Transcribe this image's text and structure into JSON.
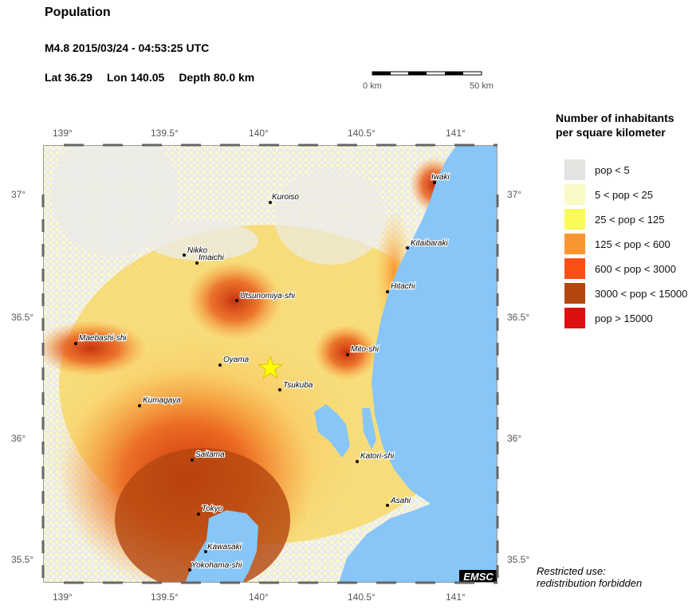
{
  "header": {
    "title": "Population",
    "event": "M4.8  2015/03/24 - 04:53:25 UTC",
    "lat": "Lat 36.29",
    "lon": "Lon 140.05",
    "depth": "Depth  80.0 km"
  },
  "scale_bar": {
    "start": "0 km",
    "end": "50 km"
  },
  "axes": {
    "lon_ticks": [
      "139°",
      "139.5°",
      "140°",
      "140.5°",
      "141°"
    ],
    "lat_ticks": [
      "37°",
      "36.5°",
      "36°",
      "35.5°"
    ]
  },
  "legend": {
    "title_line1": "Number of inhabitants",
    "title_line2": "per square kilometer",
    "items": [
      {
        "label": "pop < 5",
        "color": "#e4e4e2"
      },
      {
        "label": "5 < pop < 25",
        "color": "#fafac6"
      },
      {
        "label": "25 < pop < 125",
        "color": "#fafa5a"
      },
      {
        "label": "125 < pop < 600",
        "color": "#fa9632"
      },
      {
        "label": "600 < pop < 3000",
        "color": "#fa5014"
      },
      {
        "label": "3000 < pop < 15000",
        "color": "#b4460f"
      },
      {
        "label": "pop > 15000",
        "color": "#dc1010"
      }
    ]
  },
  "map": {
    "sea_color": "#87c6f7",
    "epicenter_color": "#ffff00",
    "logo": "EMSC",
    "cities": [
      "Iwaki",
      "Kuroiso",
      "Kitaibaraki",
      "Nikko",
      "Imaichi",
      "Hitachi",
      "Utsunomiya-shi",
      "Maebashi-shi",
      "Mito-shi",
      "Oyama",
      "Tsukuba",
      "Kumagaya",
      "Saitama",
      "Katori-shi",
      "Asahi",
      "Tokyo",
      "Kawasaki",
      "Yokohama-shi"
    ]
  },
  "note": {
    "line1": "Restricted use:",
    "line2": "redistribution forbidden"
  }
}
